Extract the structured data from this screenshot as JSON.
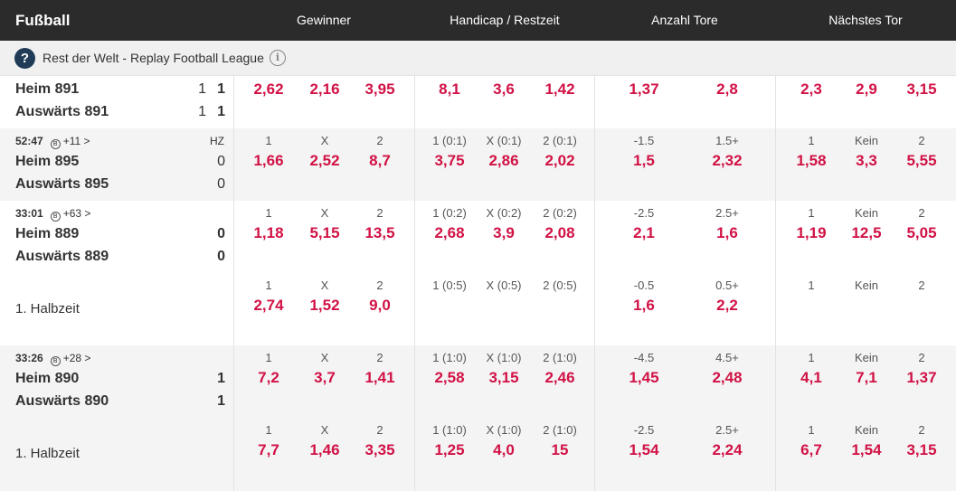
{
  "header": {
    "sport": "Fußball",
    "columns": [
      "Gewinner",
      "Handicap / Restzeit",
      "Anzahl Tore",
      "Nächstes Tor"
    ]
  },
  "league": {
    "question_mark": "?",
    "name": "Rest der Welt - Replay Football League",
    "info_symbol": "i"
  },
  "matches": [
    {
      "meta": null,
      "home": "Heim 891",
      "away": "Auswärts 891",
      "home_scores": [
        "1",
        "1"
      ],
      "away_scores": [
        "1",
        "1"
      ],
      "lines": [
        {
          "labels": null,
          "odds": [
            "2,62",
            "2,16",
            "3,95",
            "8,1",
            "3,6",
            "1,42",
            "1,37",
            "2,8",
            "2,3",
            "2,9",
            "3,15"
          ]
        }
      ]
    },
    {
      "meta": {
        "time": "52:47",
        "more": "+11 >",
        "status": "HZ"
      },
      "home": "Heim 895",
      "away": "Auswärts 895",
      "home_scores": [
        "0"
      ],
      "away_scores": [
        "0"
      ],
      "lines": [
        {
          "labels": [
            "1",
            "X",
            "2",
            "1 (0:1)",
            "X (0:1)",
            "2 (0:1)",
            "-1.5",
            "1.5+",
            "1",
            "Kein",
            "2"
          ],
          "odds": [
            "1,66",
            "2,52",
            "8,7",
            "3,75",
            "2,86",
            "2,02",
            "1,5",
            "2,32",
            "1,58",
            "3,3",
            "5,55"
          ]
        }
      ]
    },
    {
      "meta": {
        "time": "33:01",
        "more": "+63 >"
      },
      "home": "Heim 889",
      "away": "Auswärts 889",
      "home_scores": [
        "0"
      ],
      "away_scores": [
        "0"
      ],
      "lines": [
        {
          "labels": [
            "1",
            "X",
            "2",
            "1 (0:2)",
            "X (0:2)",
            "2 (0:2)",
            "-2.5",
            "2.5+",
            "1",
            "Kein",
            "2"
          ],
          "odds": [
            "1,18",
            "5,15",
            "13,5",
            "2,68",
            "3,9",
            "2,08",
            "2,1",
            "1,6",
            "1,19",
            "12,5",
            "5,05"
          ]
        },
        {
          "title": "1. Halbzeit",
          "labels": [
            "1",
            "X",
            "2",
            "1 (0:5)",
            "X (0:5)",
            "2 (0:5)",
            "-0.5",
            "0.5+",
            "1",
            "Kein",
            "2"
          ],
          "odds": [
            "2,74",
            "1,52",
            "9,0",
            "",
            "",
            "",
            "1,6",
            "2,2",
            "",
            "",
            ""
          ]
        }
      ]
    },
    {
      "meta": {
        "time": "33:26",
        "more": "+28 >"
      },
      "home": "Heim 890",
      "away": "Auswärts 890",
      "home_scores": [
        "1"
      ],
      "away_scores": [
        "1"
      ],
      "lines": [
        {
          "labels": [
            "1",
            "X",
            "2",
            "1 (1:0)",
            "X (1:0)",
            "2 (1:0)",
            "-4.5",
            "4.5+",
            "1",
            "Kein",
            "2"
          ],
          "odds": [
            "7,2",
            "3,7",
            "1,41",
            "2,58",
            "3,15",
            "2,46",
            "1,45",
            "2,48",
            "4,1",
            "7,1",
            "1,37"
          ]
        },
        {
          "title": "1. Halbzeit",
          "labels": [
            "1",
            "X",
            "2",
            "1 (1:0)",
            "X (1:0)",
            "2 (1:0)",
            "-2.5",
            "2.5+",
            "1",
            "Kein",
            "2"
          ],
          "odds": [
            "7,7",
            "1,46",
            "3,35",
            "1,25",
            "4,0",
            "15",
            "1,54",
            "2,24",
            "6,7",
            "1,54",
            "3,15"
          ]
        }
      ]
    }
  ]
}
